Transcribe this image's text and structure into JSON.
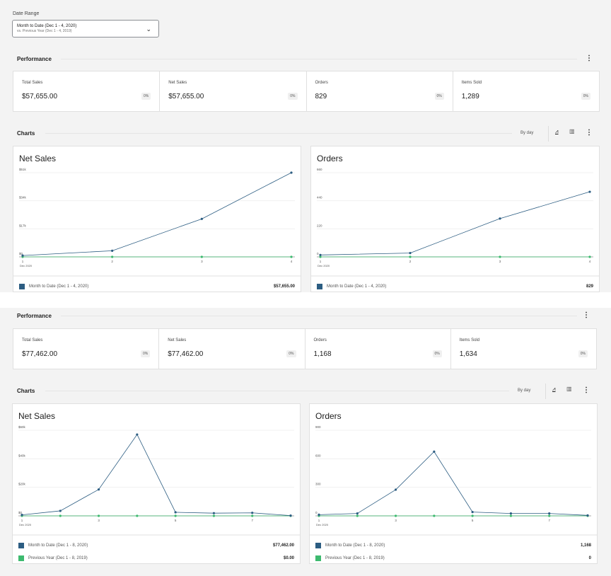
{
  "date_range": {
    "label": "Date Range",
    "primary": "Month to Date (Dec 1 - 4, 2020)",
    "secondary": "vs. Previous Year (Dec 1 - 4, 2019)"
  },
  "top": {
    "performance_title": "Performance",
    "tiles": [
      {
        "label": "Total Sales",
        "value": "$57,655.00",
        "delta": "0%"
      },
      {
        "label": "Net Sales",
        "value": "$57,655.00",
        "delta": "0%"
      },
      {
        "label": "Orders",
        "value": "829",
        "delta": "0%"
      },
      {
        "label": "Items Sold",
        "value": "1,289",
        "delta": "0%"
      }
    ],
    "charts_title": "Charts",
    "interval": "By day",
    "chart_left": {
      "title": "Net Sales",
      "y_ticks": [
        "$51k",
        "$34k",
        "$17k",
        "$0"
      ],
      "x_ticks": [
        "1",
        "2",
        "3",
        "4"
      ],
      "x_sub": "Dec 2020",
      "legend": [
        {
          "label": "Month to Date (Dec 1 - 4, 2020)",
          "value": "$57,655.00",
          "color": "#2c5d82"
        }
      ]
    },
    "chart_right": {
      "title": "Orders",
      "y_ticks": [
        "660",
        "440",
        "220",
        "0"
      ],
      "x_ticks": [
        "1",
        "2",
        "3",
        "4"
      ],
      "x_sub": "Dec 2020",
      "legend": [
        {
          "label": "Month to Date (Dec 1 - 4, 2020)",
          "value": "829",
          "color": "#2c5d82"
        }
      ]
    }
  },
  "bottom": {
    "performance_title": "Performance",
    "tiles": [
      {
        "label": "Total Sales",
        "value": "$77,462.00",
        "delta": "0%"
      },
      {
        "label": "Net Sales",
        "value": "$77,462.00",
        "delta": "0%"
      },
      {
        "label": "Orders",
        "value": "1,168",
        "delta": "0%"
      },
      {
        "label": "Items Sold",
        "value": "1,634",
        "delta": "0%"
      }
    ],
    "charts_title": "Charts",
    "interval": "By day",
    "chart_left": {
      "title": "Net Sales",
      "y_ticks": [
        "$60k",
        "$40k",
        "$20k",
        "$0"
      ],
      "x_ticks": [
        "1",
        "3",
        "5",
        "7"
      ],
      "x_sub": "Dec 2020",
      "legend": [
        {
          "label": "Month to Date (Dec 1 - 8, 2020)",
          "value": "$77,462.00",
          "color": "#2c5d82"
        },
        {
          "label": "Previous Year (Dec 1 - 8, 2019)",
          "value": "$0.00",
          "color": "#3dba6f"
        }
      ]
    },
    "chart_right": {
      "title": "Orders",
      "y_ticks": [
        "900",
        "600",
        "300",
        "0"
      ],
      "x_ticks": [
        "1",
        "3",
        "5",
        "7"
      ],
      "x_sub": "Dec 2020",
      "legend": [
        {
          "label": "Month to Date (Dec 1 - 8, 2020)",
          "value": "1,168",
          "color": "#2c5d82"
        },
        {
          "label": "Previous Year (Dec 1 - 8, 2019)",
          "value": "0",
          "color": "#3dba6f"
        }
      ]
    }
  },
  "chart_data": [
    {
      "type": "line",
      "title": "Net Sales",
      "x": [
        1,
        2,
        3,
        4
      ],
      "ylim": [
        0,
        51000
      ],
      "series": [
        {
          "name": "Month to Date (Dec 1 - 4, 2020)",
          "values": [
            800,
            3700,
            23000,
            51000
          ],
          "color": "#2c5d82"
        },
        {
          "name": "Previous Year",
          "values": [
            0,
            0,
            0,
            0
          ],
          "color": "#3dba6f"
        }
      ]
    },
    {
      "type": "line",
      "title": "Orders",
      "x": [
        1,
        2,
        3,
        4
      ],
      "ylim": [
        0,
        660
      ],
      "series": [
        {
          "name": "Month to Date (Dec 1 - 4, 2020)",
          "values": [
            15,
            30,
            300,
            510
          ],
          "color": "#2c5d82"
        },
        {
          "name": "Previous Year",
          "values": [
            0,
            0,
            0,
            0
          ],
          "color": "#3dba6f"
        }
      ]
    },
    {
      "type": "line",
      "title": "Net Sales",
      "x": [
        1,
        2,
        3,
        4,
        5,
        6,
        7,
        8
      ],
      "ylim": [
        0,
        60000
      ],
      "series": [
        {
          "name": "Month to Date (Dec 1 - 8, 2020)",
          "values": [
            700,
            3500,
            18500,
            57000,
            2500,
            1900,
            2100,
            200
          ],
          "color": "#2c5d82"
        },
        {
          "name": "Previous Year (Dec 1 - 8, 2019)",
          "values": [
            0,
            0,
            0,
            0,
            0,
            0,
            0,
            0
          ],
          "color": "#3dba6f"
        }
      ]
    },
    {
      "type": "line",
      "title": "Orders",
      "x": [
        1,
        2,
        3,
        4,
        5,
        6,
        7,
        8
      ],
      "ylim": [
        0,
        900
      ],
      "series": [
        {
          "name": "Month to Date (Dec 1 - 8, 2020)",
          "values": [
            12,
            25,
            275,
            675,
            40,
            25,
            25,
            5
          ],
          "color": "#2c5d82"
        },
        {
          "name": "Previous Year (Dec 1 - 8, 2019)",
          "values": [
            0,
            0,
            0,
            0,
            0,
            0,
            0,
            0
          ],
          "color": "#3dba6f"
        }
      ]
    }
  ]
}
